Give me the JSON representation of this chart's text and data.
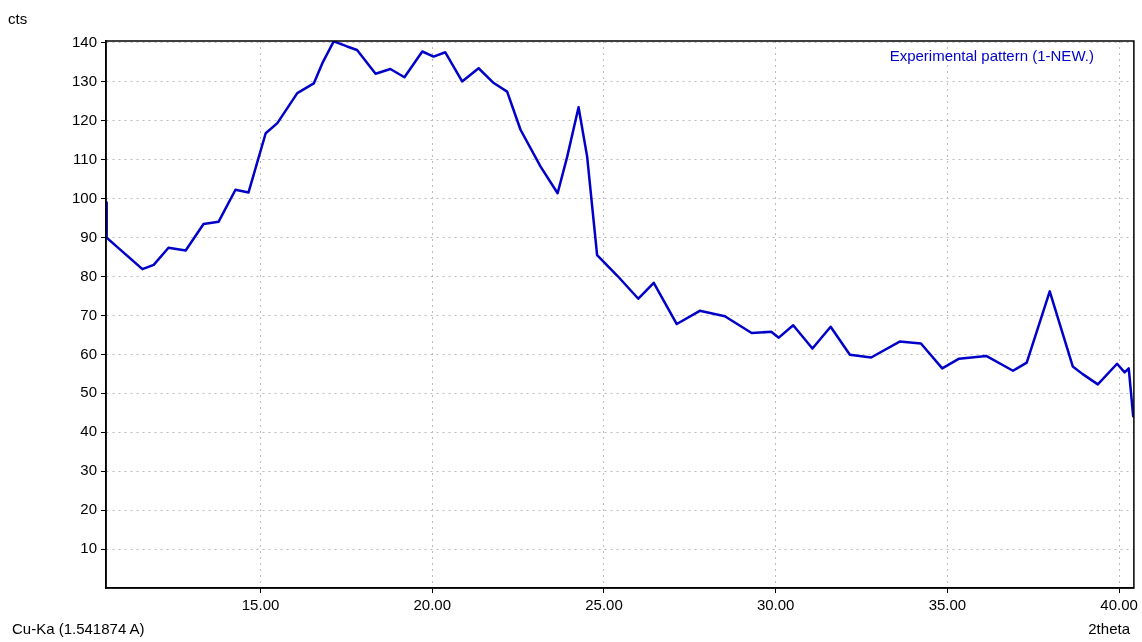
{
  "chart_data": {
    "type": "line",
    "ylabel": "cts",
    "xlabel": "2theta",
    "annotations": [
      "Cu-Ka (1.541874 A)"
    ],
    "xlim": [
      10.5,
      40.43
    ],
    "ylim": [
      0,
      140.5
    ],
    "xticks": [
      {
        "value": 15,
        "label": "15.00"
      },
      {
        "value": 20,
        "label": "20.00"
      },
      {
        "value": 25,
        "label": "25.00"
      },
      {
        "value": 30,
        "label": "30.00"
      },
      {
        "value": 35,
        "label": "35.00"
      },
      {
        "value": 40,
        "label": "40.00"
      }
    ],
    "yticks": [
      10,
      20,
      30,
      40,
      50,
      60,
      70,
      80,
      90,
      100,
      110,
      120,
      130,
      140
    ],
    "grid": true,
    "legend": "top right",
    "marker": "none",
    "line_style": "solid",
    "series": [
      {
        "name": "Experimental pattern (1-NEW.)",
        "color": "#0000c8",
        "x": [
          10.5,
          10.52,
          10.93,
          11.56,
          11.89,
          12.32,
          12.82,
          13.34,
          13.78,
          14.27,
          14.65,
          15.15,
          15.49,
          16.07,
          16.55,
          16.8,
          17.13,
          17.52,
          17.81,
          18.35,
          18.78,
          19.19,
          19.71,
          20.04,
          20.38,
          20.87,
          21.35,
          21.79,
          22.18,
          22.57,
          23.15,
          23.65,
          23.93,
          24.26,
          24.51,
          24.8,
          25.39,
          26.0,
          26.45,
          27.12,
          27.79,
          28.52,
          29.3,
          29.87,
          30.09,
          30.51,
          31.07,
          31.6,
          32.16,
          32.78,
          33.61,
          34.23,
          34.85,
          35.34,
          36.13,
          36.91,
          37.31,
          37.98,
          38.65,
          38.93,
          39.38,
          39.94,
          40.16,
          40.28,
          40.41
        ],
        "values": [
          99,
          90,
          86.8,
          81.9,
          83,
          87.4,
          86.7,
          93.5,
          94.1,
          102.3,
          101.6,
          116.8,
          119.4,
          127.1,
          129.6,
          134.8,
          140.4,
          139.1,
          138.2,
          132.1,
          133.3,
          131.2,
          137.8,
          136.5,
          137.6,
          130.1,
          133.5,
          129.7,
          127.5,
          117.7,
          108.3,
          101.4,
          110.8,
          123.5,
          110.8,
          85.5,
          80.2,
          74.3,
          78.4,
          67.8,
          71.2,
          69.8,
          65.5,
          65.8,
          64.3,
          67.5,
          61.5,
          67.1,
          59.9,
          59.2,
          63.3,
          62.8,
          56.4,
          58.9,
          59.6,
          55.8,
          57.9,
          76.2,
          56.9,
          55,
          52.3,
          57.6,
          55.4,
          56.4,
          44.1
        ]
      }
    ]
  }
}
